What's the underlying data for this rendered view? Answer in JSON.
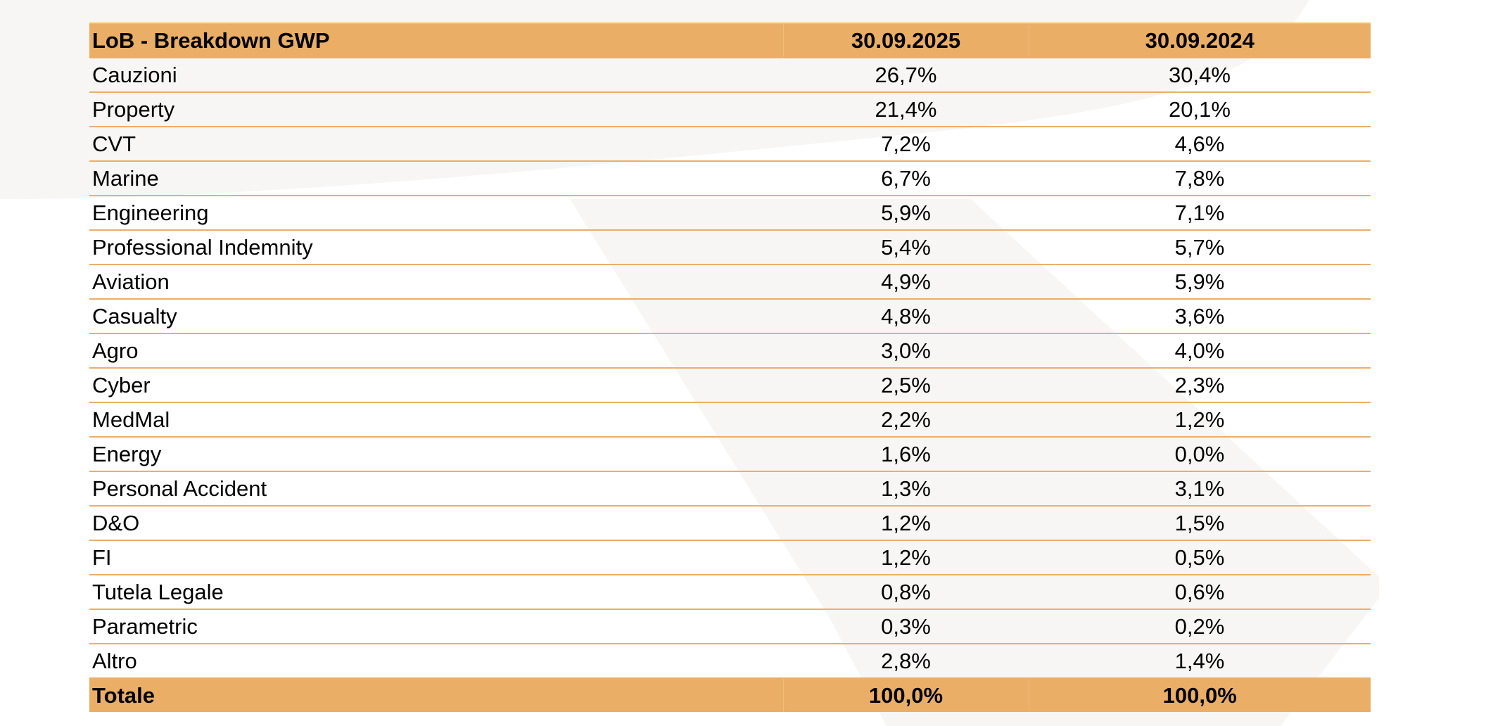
{
  "table": {
    "headers": [
      "LoB - Breakdown GWP",
      "30.09.2025",
      "30.09.2024"
    ],
    "rows": [
      [
        "Cauzioni",
        "26,7%",
        "30,4%"
      ],
      [
        "Property",
        "21,4%",
        "20,1%"
      ],
      [
        "CVT",
        "7,2%",
        "4,6%"
      ],
      [
        "Marine",
        "6,7%",
        "7,8%"
      ],
      [
        "Engineering",
        "5,9%",
        "7,1%"
      ],
      [
        "Professional Indemnity",
        "5,4%",
        "5,7%"
      ],
      [
        "Aviation",
        "4,9%",
        "5,9%"
      ],
      [
        "Casualty",
        "4,8%",
        "3,6%"
      ],
      [
        "Agro",
        "3,0%",
        "4,0%"
      ],
      [
        "Cyber",
        "2,5%",
        "2,3%"
      ],
      [
        "MedMal",
        "2,2%",
        "1,2%"
      ],
      [
        "Energy",
        "1,6%",
        "0,0%"
      ],
      [
        "Personal Accident",
        "1,3%",
        "3,1%"
      ],
      [
        "D&O",
        "1,2%",
        "1,5%"
      ],
      [
        "FI",
        "1,2%",
        "0,5%"
      ],
      [
        "Tutela Legale",
        "0,8%",
        "0,6%"
      ],
      [
        "Parametric",
        "0,3%",
        "0,2%"
      ],
      [
        "Altro",
        "2,8%",
        "1,4%"
      ]
    ],
    "total": [
      "Totale",
      "100,0%",
      "100,0%"
    ]
  },
  "colors": {
    "header_fill": "#eaae66",
    "row_rule": "#ebae6a",
    "background_shape": "#f7f6f4"
  }
}
